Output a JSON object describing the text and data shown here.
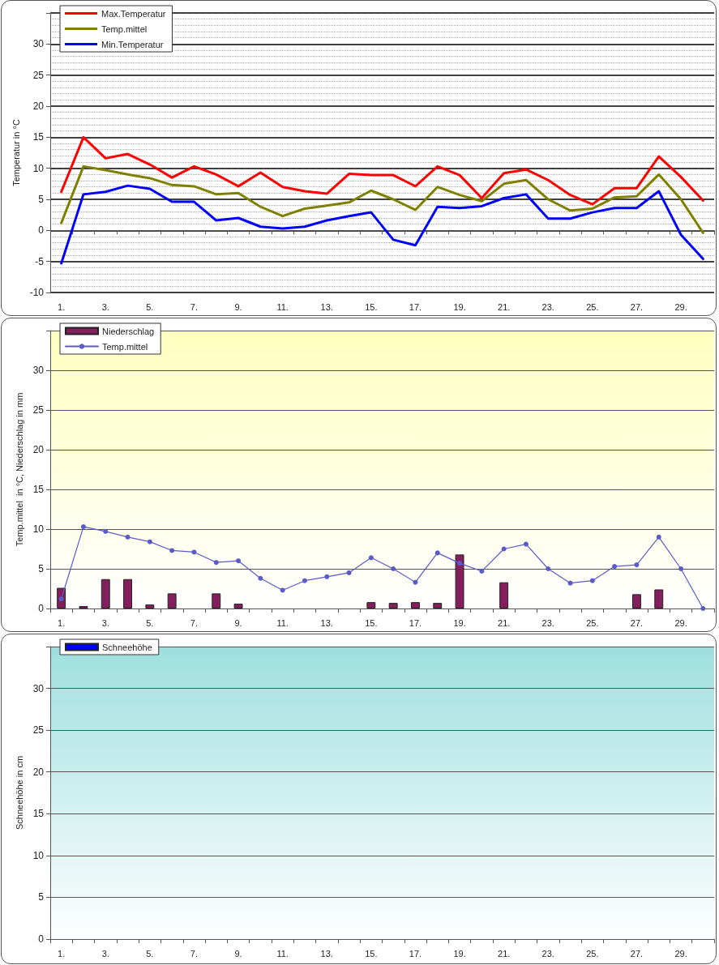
{
  "chart_data": [
    {
      "type": "line",
      "ylabel": "Temperatur in °C",
      "categories": [
        "1.",
        null,
        "3.",
        null,
        "5.",
        null,
        "7.",
        null,
        "9.",
        null,
        "11.",
        null,
        "13.",
        null,
        "15.",
        null,
        "17.",
        null,
        "19.",
        null,
        "21.",
        null,
        "23.",
        null,
        "25.",
        null,
        "27.",
        null,
        "29.",
        null
      ],
      "series": [
        {
          "name": "Max.Temperatur",
          "color": "#ff0000",
          "values": [
            6.2,
            15.0,
            11.6,
            12.3,
            10.6,
            8.5,
            10.3,
            9.0,
            7.1,
            9.3,
            7.0,
            6.3,
            5.9,
            9.1,
            8.9,
            8.9,
            7.1,
            10.3,
            8.9,
            5.2,
            9.2,
            9.8,
            8.1,
            5.7,
            4.2,
            6.8,
            6.8,
            11.9,
            8.6,
            4.8
          ]
        },
        {
          "name": "Temp.mittel",
          "color": "#808000",
          "values": [
            1.2,
            10.3,
            9.7,
            9.0,
            8.4,
            7.3,
            7.1,
            5.8,
            6.0,
            3.8,
            2.3,
            3.5,
            4.0,
            4.5,
            6.4,
            5.0,
            3.3,
            7.0,
            5.7,
            4.7,
            7.5,
            8.1,
            5.0,
            3.2,
            3.5,
            5.3,
            5.5,
            9.0,
            5.0,
            -0.4
          ]
        },
        {
          "name": "Min.Temperatur",
          "color": "#0000ff",
          "values": [
            -5.3,
            5.8,
            6.2,
            7.2,
            6.7,
            4.6,
            4.6,
            1.6,
            2.0,
            0.6,
            0.3,
            0.6,
            1.6,
            2.3,
            2.9,
            -1.5,
            -2.4,
            3.8,
            3.6,
            3.9,
            5.2,
            5.8,
            1.9,
            1.9,
            2.9,
            3.6,
            3.6,
            6.3,
            -0.7,
            -4.6
          ]
        }
      ],
      "ylim": [
        -10,
        35
      ],
      "yticks": [
        -10,
        -5,
        0,
        5,
        10,
        15,
        20,
        25,
        30
      ],
      "grid": "y",
      "legend": "top left",
      "marker": "none",
      "line_style": "solid"
    },
    {
      "type": "bar",
      "ylabel": "Temp.mittel  in °C, Niederschlag in mm",
      "categories": [
        "1.",
        null,
        "3.",
        null,
        "5.",
        null,
        "7.",
        null,
        "9.",
        null,
        "11.",
        null,
        "13.",
        null,
        "15.",
        null,
        "17.",
        null,
        "19.",
        null,
        "21.",
        null,
        "23.",
        null,
        "25.",
        null,
        "27.",
        null,
        "29.",
        null
      ],
      "series": [
        {
          "name": "Niederschlag",
          "color": "#841f5e",
          "values": [
            2.6,
            0.3,
            3.7,
            3.7,
            0.5,
            1.9,
            0,
            1.9,
            0.6,
            0,
            0,
            0,
            0,
            0,
            0.8,
            0.7,
            0.8,
            0.7,
            6.8,
            0,
            3.3,
            0,
            0,
            0,
            0,
            0,
            1.8,
            2.4,
            0,
            0
          ]
        },
        {
          "name": "Temp.mittel",
          "type": "line",
          "marker": "circle",
          "color": "#5a5ac8",
          "values": [
            1.2,
            10.3,
            9.7,
            9.0,
            8.4,
            7.3,
            7.1,
            5.8,
            6.0,
            3.8,
            2.3,
            3.5,
            4.0,
            4.5,
            6.4,
            5.0,
            3.3,
            7.0,
            5.7,
            4.7,
            7.5,
            8.1,
            5.0,
            3.2,
            3.5,
            5.3,
            5.5,
            9.0,
            5.0,
            0
          ]
        }
      ],
      "ylim": [
        0,
        35
      ],
      "yticks": [
        0,
        5,
        10,
        15,
        20,
        25,
        30
      ],
      "grid": "y",
      "legend": "top left"
    },
    {
      "type": "bar",
      "ylabel": "Schneehöhe in cm",
      "categories": [
        "1.",
        null,
        "3.",
        null,
        "5.",
        null,
        "7.",
        null,
        "9.",
        null,
        "11.",
        null,
        "13.",
        null,
        "15.",
        null,
        "17.",
        null,
        "19.",
        null,
        "21.",
        null,
        "23.",
        null,
        "25.",
        null,
        "27.",
        null,
        "29.",
        null
      ],
      "series": [
        {
          "name": "Schneehöhe",
          "color": "#0000ff",
          "values": [
            null,
            null,
            null,
            null,
            null,
            null,
            null,
            null,
            null,
            null,
            null,
            null,
            null,
            null,
            null,
            null,
            null,
            null,
            null,
            null,
            null,
            null,
            null,
            null,
            null,
            null,
            null,
            null,
            null,
            null
          ]
        }
      ],
      "ylim": [
        0,
        35
      ],
      "yticks": [
        0,
        5,
        10,
        15,
        20,
        25,
        30
      ],
      "grid": "y",
      "legend": "top left"
    }
  ]
}
